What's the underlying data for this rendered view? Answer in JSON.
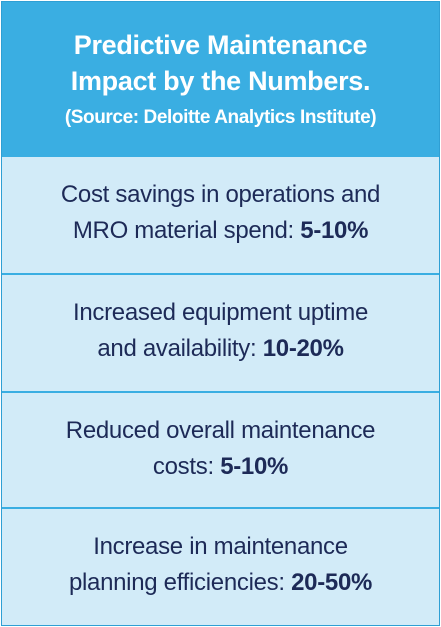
{
  "header": {
    "title_line1": "Predictive Maintenance",
    "title_line2": "Impact by the Numbers.",
    "source": "(Source: Deloitte Analytics Institute)"
  },
  "stats": [
    {
      "line1": "Cost savings in operations and",
      "line2_text": "MRO material spend: ",
      "value": "5-10%"
    },
    {
      "line1": "Increased equipment uptime",
      "line2_text": "and availability: ",
      "value": "10-20%"
    },
    {
      "line1": "Reduced overall maintenance",
      "line2_text": "costs: ",
      "value": "5-10%"
    },
    {
      "line1": "Increase in maintenance",
      "line2_text": "planning efficiencies: ",
      "value": "20-50%"
    }
  ],
  "colors": {
    "header_bg": "#3aaee2",
    "body_bg": "#d2ebf8",
    "text": "#1d2a57"
  }
}
